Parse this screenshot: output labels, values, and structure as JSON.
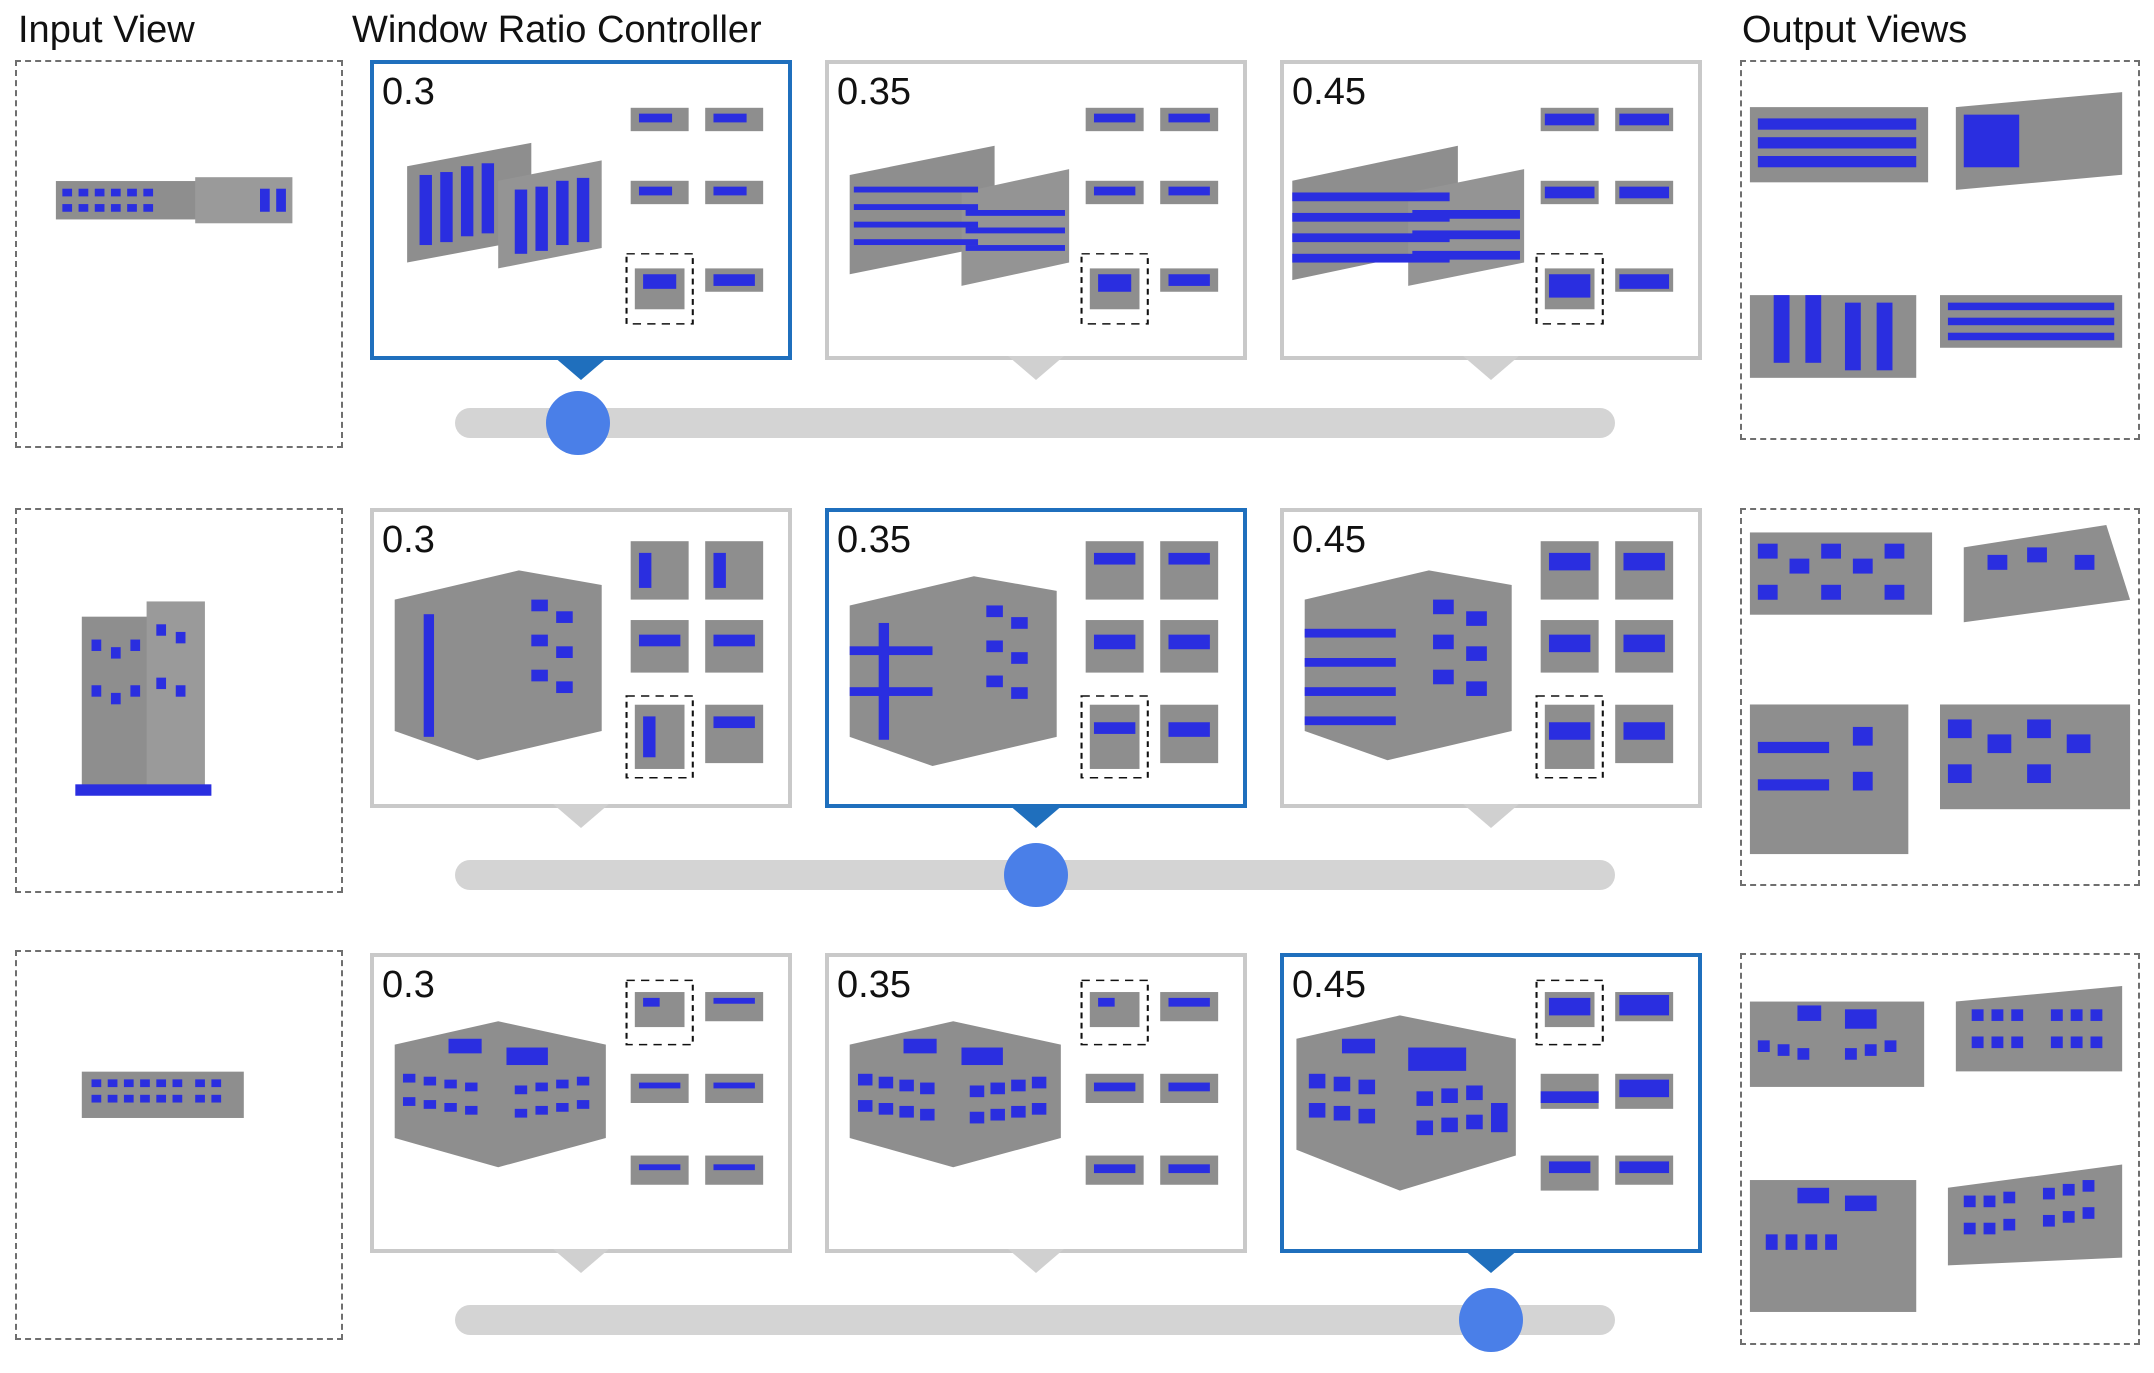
{
  "headers": {
    "input": "Input View",
    "controller": "Window Ratio Controller",
    "output": "Output Views"
  },
  "rows": [
    {
      "style": "bar",
      "ratios": [
        "0.3",
        "0.35",
        "0.45"
      ],
      "selected_index": 0,
      "slider_value": 0.3
    },
    {
      "style": "block",
      "ratios": [
        "0.3",
        "0.35",
        "0.45"
      ],
      "selected_index": 1,
      "slider_value": 0.35
    },
    {
      "style": "court",
      "ratios": [
        "0.3",
        "0.35",
        "0.45"
      ],
      "selected_index": 2,
      "slider_value": 0.45
    }
  ],
  "colors": {
    "selected_border": "#1f6fbd",
    "unselected_border": "#c9c9c9",
    "slider_track": "#d4d4d4",
    "slider_knob": "#4a7fe8",
    "window_blue": "#2a2ee0",
    "facade_gray": "#8e8e8e"
  }
}
